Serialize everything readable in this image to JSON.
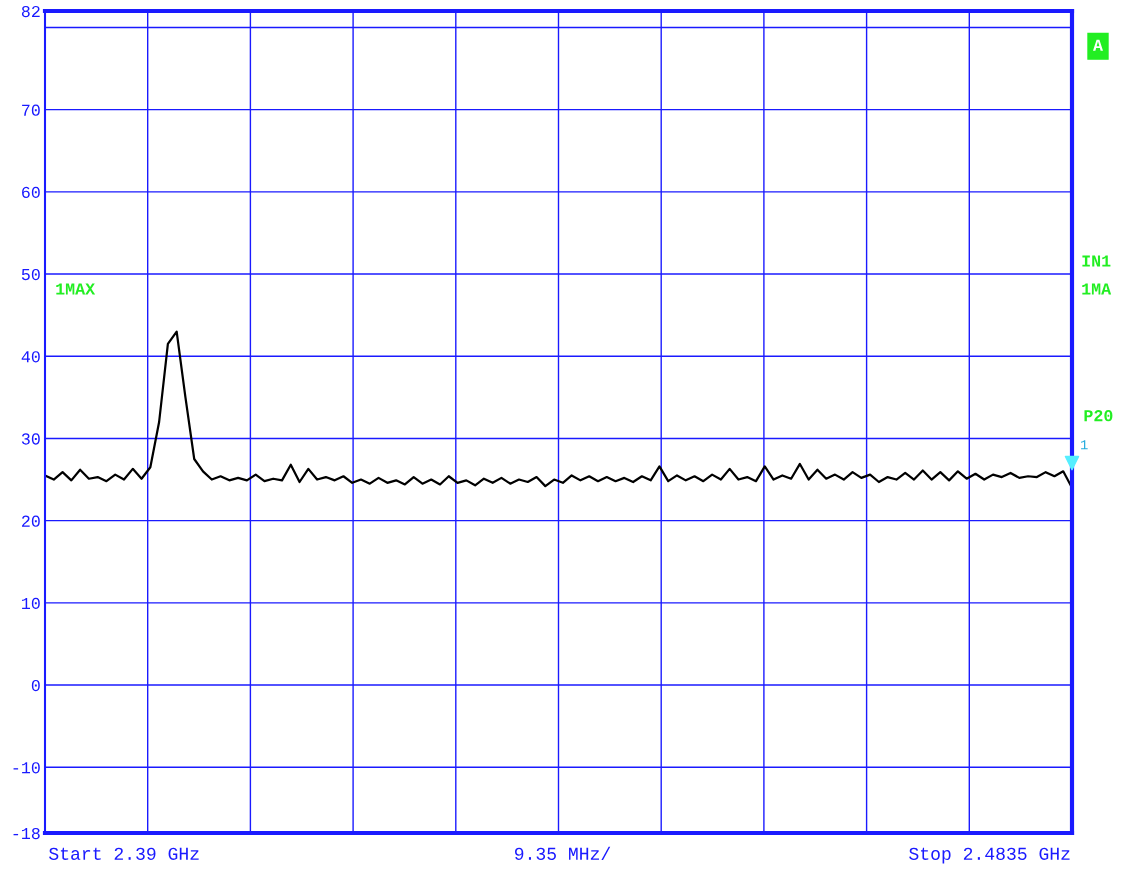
{
  "chart_data": {
    "type": "line",
    "categories": [
      null,
      null,
      null,
      null,
      null,
      null,
      null,
      null,
      null,
      null,
      null,
      null,
      null,
      null,
      null,
      null,
      null,
      null,
      null,
      null,
      null,
      null,
      null,
      null,
      null,
      null,
      null,
      null,
      null,
      null,
      null,
      null,
      null,
      null,
      null,
      null,
      null,
      null,
      null,
      null,
      null,
      null,
      null,
      null,
      null,
      null,
      null,
      null,
      null,
      null,
      null,
      null,
      null,
      null,
      null,
      null,
      null,
      null,
      null,
      null,
      null,
      null,
      null,
      null,
      null,
      null,
      null,
      null,
      null,
      null,
      null,
      null,
      null,
      null,
      null,
      null,
      null,
      null,
      null,
      null,
      null,
      null,
      null,
      null,
      null,
      null,
      null,
      null,
      null,
      null,
      null,
      null,
      null,
      null,
      null,
      null,
      null,
      null,
      null,
      null,
      null,
      null,
      null,
      null,
      null,
      null,
      null,
      null,
      null,
      null,
      null,
      null,
      null,
      null,
      null,
      null,
      null,
      null
    ],
    "series": [
      {
        "color": "#000000",
        "values": [
          25.5,
          25.0,
          25.9,
          24.9,
          26.2,
          25.1,
          25.3,
          24.8,
          25.6,
          25.0,
          26.3,
          25.1,
          26.5,
          32,
          41.5,
          43.0,
          35,
          27.5,
          26.0,
          25.0,
          25.4,
          24.9,
          25.2,
          24.9,
          25.6,
          24.8,
          25.1,
          24.9,
          26.8,
          24.7,
          26.3,
          25.0,
          25.3,
          24.9,
          25.4,
          24.6,
          25.0,
          24.5,
          25.2,
          24.6,
          24.9,
          24.4,
          25.3,
          24.5,
          25.0,
          24.4,
          25.4,
          24.6,
          24.9,
          24.3,
          25.1,
          24.6,
          25.2,
          24.5,
          25.0,
          24.7,
          25.3,
          24.2,
          25.0,
          24.6,
          25.5,
          24.9,
          25.4,
          24.8,
          25.3,
          24.8,
          25.2,
          24.7,
          25.4,
          24.9,
          26.6,
          24.8,
          25.5,
          24.9,
          25.4,
          24.8,
          25.6,
          25.0,
          26.3,
          25.0,
          25.3,
          24.8,
          26.6,
          25.0,
          25.5,
          25.1,
          26.9,
          25.0,
          26.2,
          25.1,
          25.6,
          25.0,
          25.9,
          25.2,
          25.6,
          24.7,
          25.3,
          25.0,
          25.8,
          25.0,
          26.1,
          25.0,
          25.9,
          24.9,
          26.0,
          25.1,
          25.7,
          25.0,
          25.6,
          25.3,
          25.8,
          25.2,
          25.4,
          25.3,
          25.9,
          25.4,
          26.0,
          24.0
        ]
      }
    ],
    "ylim": [
      -18,
      82
    ],
    "yticks": [
      -18,
      -10,
      0,
      10,
      20,
      30,
      40,
      50,
      60,
      70,
      {
        "value": 80,
        "label": null
      },
      82
    ],
    "grid": true,
    "line_style": "solid",
    "annotations": [
      "Start 2.39 GHz",
      "9.35 MHz/",
      "Stop 2.4835 GHz",
      "A",
      "1MAX",
      "IN1",
      "1MA",
      "P20",
      "1"
    ]
  }
}
